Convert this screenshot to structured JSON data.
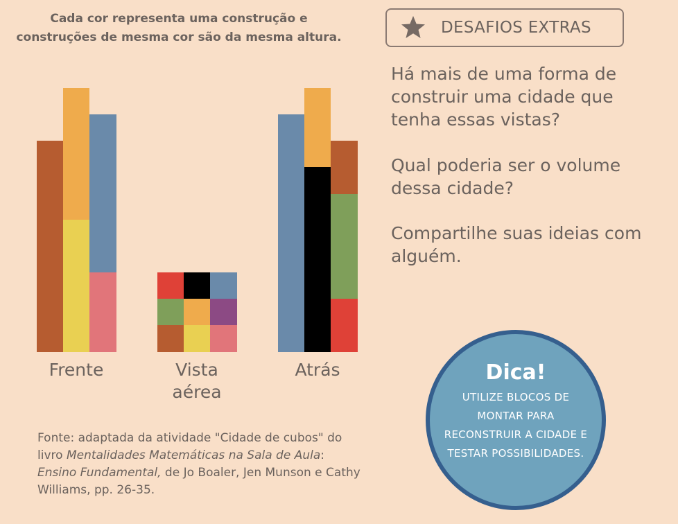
{
  "legend": "Cada cor representa uma construção e construções de mesma cor são da mesma altura.",
  "colors": {
    "brown": "#b65c30",
    "orange": "#efab4c",
    "steel_blue": "#6a8aaa",
    "yellow": "#e9d052",
    "pink": "#e1757a",
    "red": "#df4137",
    "black": "#000000",
    "green": "#7f9f5a",
    "purple": "#8c4a84",
    "background": "#f9dfc8"
  },
  "views": {
    "front": "Frente",
    "aerial": "Vista aérea",
    "back": "Atrás"
  },
  "source": {
    "prefix": "Fonte: adaptada da atividade \"Cidade de cubos\" do livro ",
    "book": "Mentalidades Matemáticas na Sala de Aula",
    "sep": ": ",
    "book2": "Ensino Fundamental,",
    "suffix": " de Jo Boaler, Jen Munson e Cathy Williams,  pp. 26-35."
  },
  "badge": {
    "icon": "star-icon",
    "label": "DESAFIOS EXTRAS"
  },
  "questions": [
    "Há mais de uma forma de construir uma cidade que tenha essas vistas?",
    "Qual poderia ser o volume dessa cidade?",
    "Compartilhe suas ideias com alguém."
  ],
  "tip": {
    "title": "Dica!",
    "body": "UTILIZE BLOCOS DE MONTAR PARA RECONSTRUIR A CIDADE  E TESTAR POSSIBILIDADES."
  }
}
